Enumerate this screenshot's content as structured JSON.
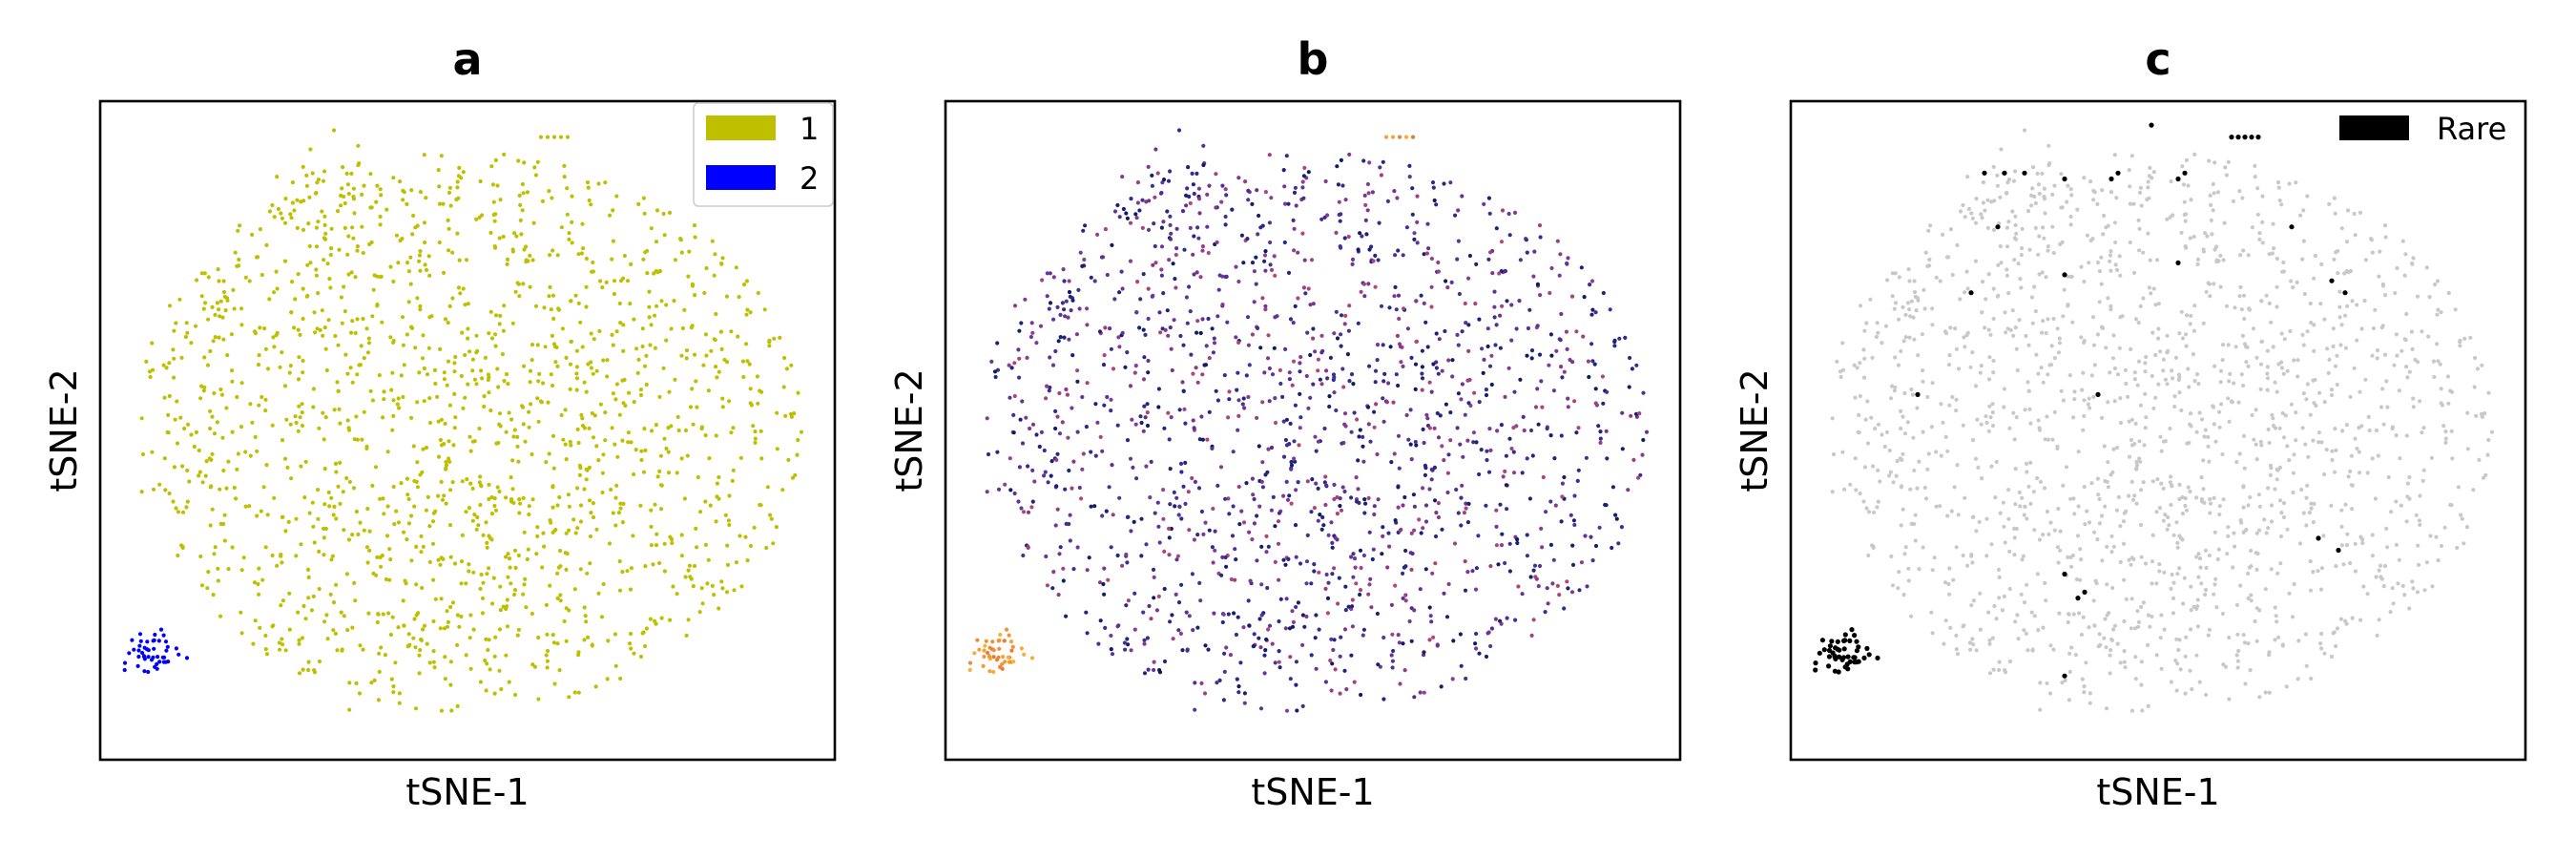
{
  "chart_data": [
    {
      "type": "scatter",
      "title": "a",
      "xlabel": "tSNE-1",
      "ylabel": "tSNE-2",
      "ticks": "none",
      "xlim": [
        -55,
        55
      ],
      "ylim": [
        -55,
        55
      ],
      "legend": {
        "placement": "top-right",
        "entries": [
          {
            "label": "1",
            "color": "#bfbf00"
          },
          {
            "label": "2",
            "color": "#0000ff"
          }
        ]
      },
      "series": [
        {
          "name": "1",
          "color": "#bfbf00",
          "cloud": {
            "center": [
              0,
              0
            ],
            "radii": [
              50,
              47
            ],
            "n": 1400
          },
          "clusters": [
            {
              "center": [
                -20,
                40
              ],
              "spread": 4,
              "n": 30
            },
            {
              "center": [
                -15,
                28
              ],
              "spread": 6,
              "n": 20
            },
            {
              "center": [
                15,
                3
              ],
              "spread": 12,
              "n": 60
            },
            {
              "center": [
                -2,
                -18
              ],
              "spread": 12,
              "n": 80
            }
          ],
          "extra": [
            [
              11,
              49
            ],
            [
              12,
              49
            ],
            [
              13,
              49
            ],
            [
              14,
              49
            ],
            [
              15,
              49
            ],
            [
              22,
              25
            ],
            [
              23,
              25
            ],
            [
              24,
              25
            ]
          ]
        },
        {
          "name": "2",
          "color": "#0000ff",
          "clusters": [
            {
              "center": [
                -47,
                -37
              ],
              "spread": 2,
              "n": 45
            }
          ],
          "extra": [
            [
              -42,
              -38
            ],
            [
              -49,
              -34
            ]
          ]
        }
      ]
    },
    {
      "type": "scatter",
      "title": "b",
      "xlabel": "tSNE-1",
      "ylabel": "tSNE-2",
      "ticks": "none",
      "xlim": [
        -55,
        55
      ],
      "ylim": [
        -55,
        55
      ],
      "colormap": [
        "#0d1a5e",
        "#2b2a8c",
        "#5b3296",
        "#8a3a8f",
        "#bb4a74",
        "#e6673f",
        "#f59a32",
        "#f9c542"
      ],
      "series": [
        {
          "name": "",
          "colormap_range": [
            0,
            0.55
          ],
          "cloud": {
            "center": [
              0,
              0
            ],
            "radii": [
              50,
              47
            ],
            "n": 1400
          },
          "clusters": [
            {
              "center": [
                -20,
                40
              ],
              "spread": 4,
              "n": 30
            },
            {
              "center": [
                -15,
                28
              ],
              "spread": 6,
              "n": 20
            },
            {
              "center": [
                15,
                3
              ],
              "spread": 12,
              "n": 60
            },
            {
              "center": [
                -2,
                -18
              ],
              "spread": 12,
              "n": 80
            }
          ]
        },
        {
          "name": "",
          "colormap_range": [
            0.75,
            0.95
          ],
          "clusters": [
            {
              "center": [
                -47,
                -37
              ],
              "spread": 2,
              "n": 45
            }
          ],
          "extra": [
            [
              11,
              49
            ],
            [
              12,
              49
            ],
            [
              13,
              49
            ],
            [
              14,
              49
            ],
            [
              15,
              49
            ],
            [
              -42,
              -38
            ]
          ]
        }
      ]
    },
    {
      "type": "scatter",
      "title": "c",
      "xlabel": "tSNE-1",
      "ylabel": "tSNE-2",
      "ticks": "none",
      "xlim": [
        -55,
        55
      ],
      "ylim": [
        -55,
        55
      ],
      "legend": {
        "placement": "top-right",
        "entries": [
          {
            "label": "Rare",
            "color": "#000000"
          }
        ]
      },
      "series": [
        {
          "name": "",
          "color": "#c8c8c8",
          "cloud": {
            "center": [
              0,
              0
            ],
            "radii": [
              50,
              47
            ],
            "n": 1400
          },
          "clusters": [
            {
              "center": [
                -20,
                40
              ],
              "spread": 4,
              "n": 30
            },
            {
              "center": [
                -15,
                28
              ],
              "spread": 6,
              "n": 20
            },
            {
              "center": [
                15,
                3
              ],
              "spread": 12,
              "n": 60
            },
            {
              "center": [
                -2,
                -18
              ],
              "spread": 12,
              "n": 80
            }
          ]
        },
        {
          "name": "Rare",
          "color": "#000000",
          "clusters": [
            {
              "center": [
                -47,
                -37
              ],
              "spread": 2,
              "n": 45
            }
          ],
          "extra": [
            [
              11,
              49
            ],
            [
              12,
              49
            ],
            [
              13,
              49
            ],
            [
              14,
              49
            ],
            [
              15,
              49
            ],
            [
              -42,
              -38
            ],
            [
              -1,
              51
            ],
            [
              -26,
              43
            ],
            [
              -23,
              43
            ],
            [
              -20,
              43
            ],
            [
              -14,
              42
            ],
            [
              -7,
              42
            ],
            [
              -6,
              43
            ],
            [
              3,
              42
            ],
            [
              4,
              43
            ],
            [
              -24,
              34
            ],
            [
              -28,
              23
            ],
            [
              -14,
              26
            ],
            [
              3,
              28
            ],
            [
              20,
              34
            ],
            [
              28,
              23
            ],
            [
              26,
              25
            ],
            [
              -36,
              6
            ],
            [
              -9,
              6
            ],
            [
              24,
              -18
            ],
            [
              27,
              -20
            ],
            [
              -14,
              -24
            ],
            [
              -11,
              -27
            ],
            [
              -12,
              -28
            ],
            [
              -44,
              -38
            ],
            [
              -14,
              -41
            ]
          ]
        }
      ]
    }
  ]
}
